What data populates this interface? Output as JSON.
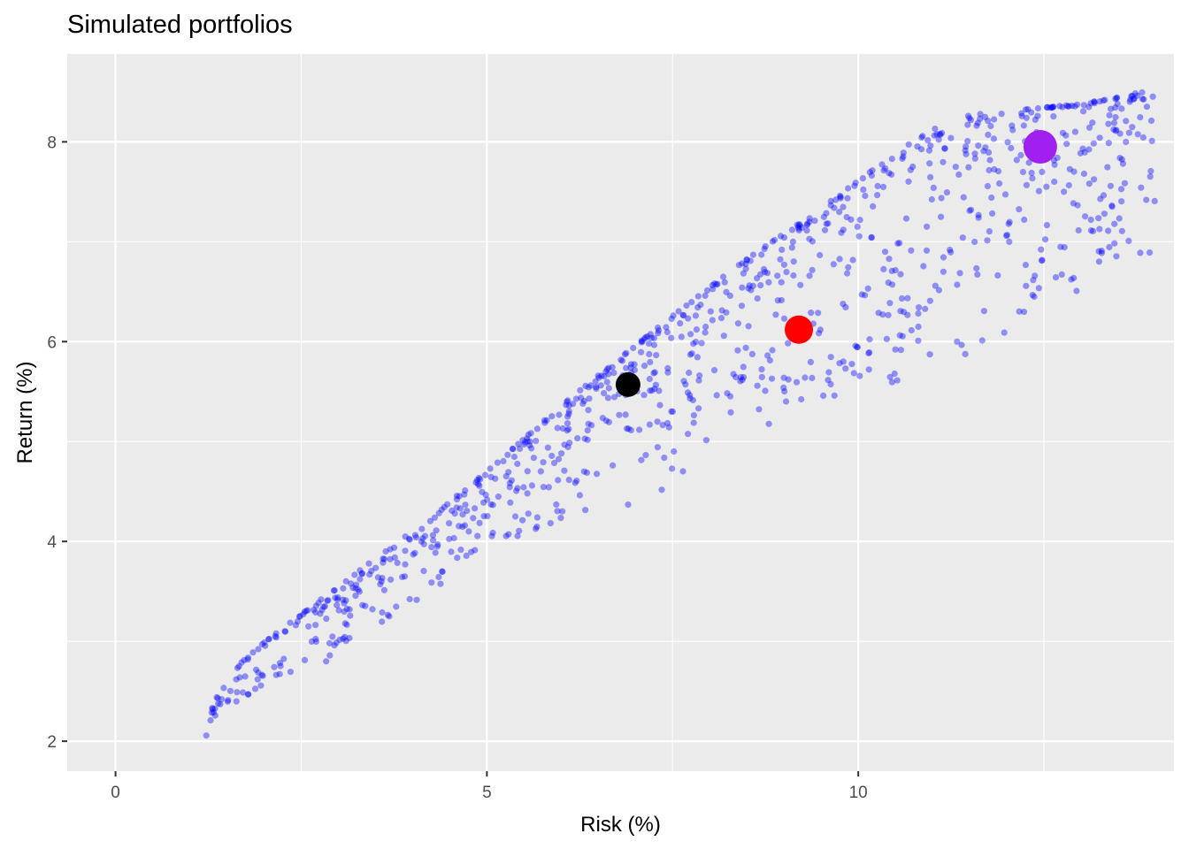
{
  "chart_data": {
    "type": "scatter",
    "title": "Simulated portfolios",
    "xlabel": "Risk (%)",
    "ylabel": "Return (%)",
    "xlim": [
      -0.65,
      14.25
    ],
    "ylim": [
      1.7,
      8.88
    ],
    "x_ticks": [
      0,
      5,
      10
    ],
    "y_ticks": [
      2,
      4,
      6,
      8
    ],
    "grid": true,
    "background": "#ebebeb",
    "grid_color": "#ffffff",
    "point_color": "#0000ff",
    "point_opacity": 0.4,
    "frontier_upper": [
      [
        1.22,
        2.02
      ],
      [
        1.24,
        2.12
      ],
      [
        1.27,
        2.25
      ],
      [
        1.32,
        2.38
      ],
      [
        1.4,
        2.5
      ],
      [
        1.52,
        2.64
      ],
      [
        1.7,
        2.79
      ],
      [
        1.92,
        2.94
      ],
      [
        2.2,
        3.1
      ],
      [
        2.5,
        3.27
      ],
      [
        2.82,
        3.45
      ],
      [
        3.15,
        3.63
      ],
      [
        3.5,
        3.83
      ],
      [
        3.85,
        4.02
      ],
      [
        4.2,
        4.22
      ],
      [
        4.6,
        4.46
      ],
      [
        5.0,
        4.7
      ],
      [
        5.4,
        4.96
      ],
      [
        5.8,
        5.23
      ],
      [
        6.2,
        5.48
      ],
      [
        6.6,
        5.72
      ],
      [
        7.0,
        5.96
      ],
      [
        7.4,
        6.2
      ],
      [
        7.8,
        6.43
      ],
      [
        8.2,
        6.66
      ],
      [
        8.6,
        6.88
      ],
      [
        9.0,
        7.08
      ],
      [
        9.4,
        7.28
      ],
      [
        9.8,
        7.5
      ],
      [
        10.2,
        7.72
      ],
      [
        10.6,
        7.94
      ],
      [
        11.0,
        8.12
      ],
      [
        11.4,
        8.25
      ],
      [
        11.8,
        8.3
      ],
      [
        12.2,
        8.32
      ],
      [
        12.6,
        8.35
      ],
      [
        13.0,
        8.38
      ],
      [
        13.4,
        8.43
      ],
      [
        13.8,
        8.5
      ],
      [
        14.0,
        8.53
      ]
    ],
    "frontier_lower": [
      [
        1.25,
        2.1
      ],
      [
        1.5,
        2.3
      ],
      [
        1.8,
        2.42
      ],
      [
        2.2,
        2.62
      ],
      [
        2.6,
        2.72
      ],
      [
        3.0,
        2.85
      ],
      [
        3.5,
        3.05
      ],
      [
        4.0,
        3.35
      ],
      [
        4.5,
        3.6
      ],
      [
        5.0,
        3.85
      ],
      [
        5.5,
        4.05
      ],
      [
        6.0,
        4.15
      ],
      [
        6.5,
        4.25
      ],
      [
        7.0,
        4.35
      ],
      [
        7.5,
        4.5
      ],
      [
        8.0,
        4.75
      ],
      [
        8.5,
        5.0
      ],
      [
        9.0,
        5.25
      ],
      [
        9.5,
        5.35
      ],
      [
        10.0,
        5.5
      ],
      [
        10.5,
        5.6
      ],
      [
        11.0,
        5.7
      ],
      [
        11.5,
        5.85
      ],
      [
        12.0,
        6.05
      ],
      [
        12.5,
        6.3
      ],
      [
        13.0,
        6.5
      ],
      [
        13.5,
        6.65
      ],
      [
        14.0,
        6.85
      ]
    ],
    "highlight_points": [
      {
        "x": 6.9,
        "y": 5.57,
        "color": "#000000"
      },
      {
        "x": 9.2,
        "y": 6.12,
        "color": "#ff0000"
      },
      {
        "x": 12.45,
        "y": 7.95,
        "color": "#a020f0"
      }
    ]
  }
}
